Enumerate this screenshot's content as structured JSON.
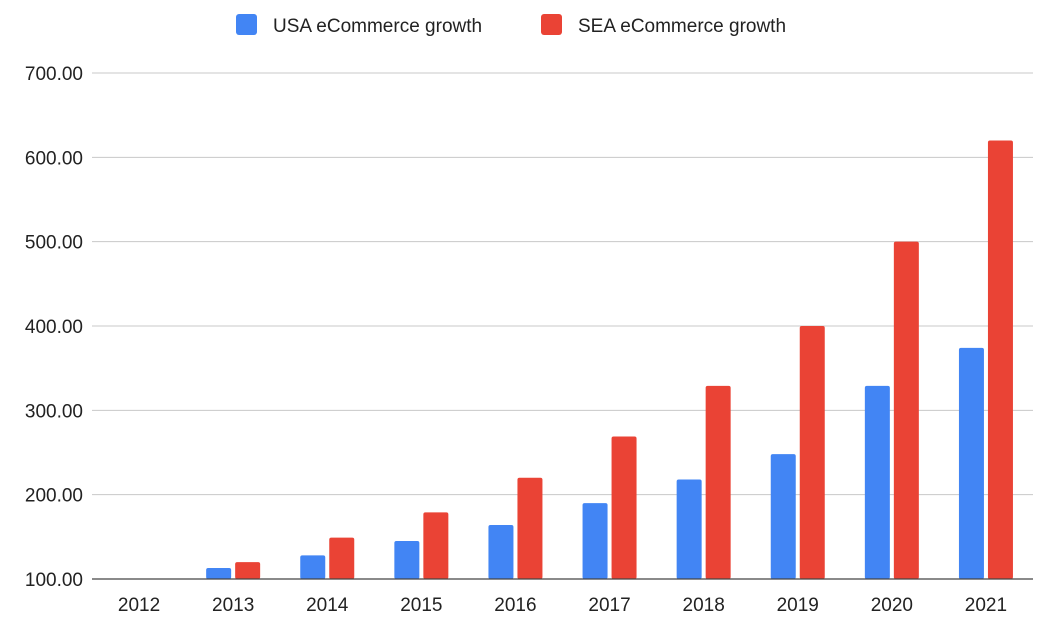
{
  "chart_data": {
    "type": "bar",
    "title": "",
    "xlabel": "",
    "ylabel": "",
    "categories": [
      "2012",
      "2013",
      "2014",
      "2015",
      "2016",
      "2017",
      "2018",
      "2019",
      "2020",
      "2021"
    ],
    "series": [
      {
        "name": "USA eCommerce growth",
        "color": "#4285f4",
        "values": [
          100,
          113,
          128,
          145,
          164,
          190,
          218,
          248,
          329,
          374
        ]
      },
      {
        "name": "SEA eCommerce growth",
        "color": "#ea4335",
        "values": [
          100,
          120,
          149,
          179,
          220,
          269,
          329,
          400,
          500,
          620
        ]
      }
    ],
    "ylim": [
      100,
      700
    ],
    "yticks": [
      100,
      200,
      300,
      400,
      500,
      600,
      700
    ],
    "ytick_labels": [
      "100.00",
      "200.00",
      "300.00",
      "400.00",
      "500.00",
      "600.00",
      "700.00"
    ],
    "grid": true,
    "legend": "top-center"
  }
}
